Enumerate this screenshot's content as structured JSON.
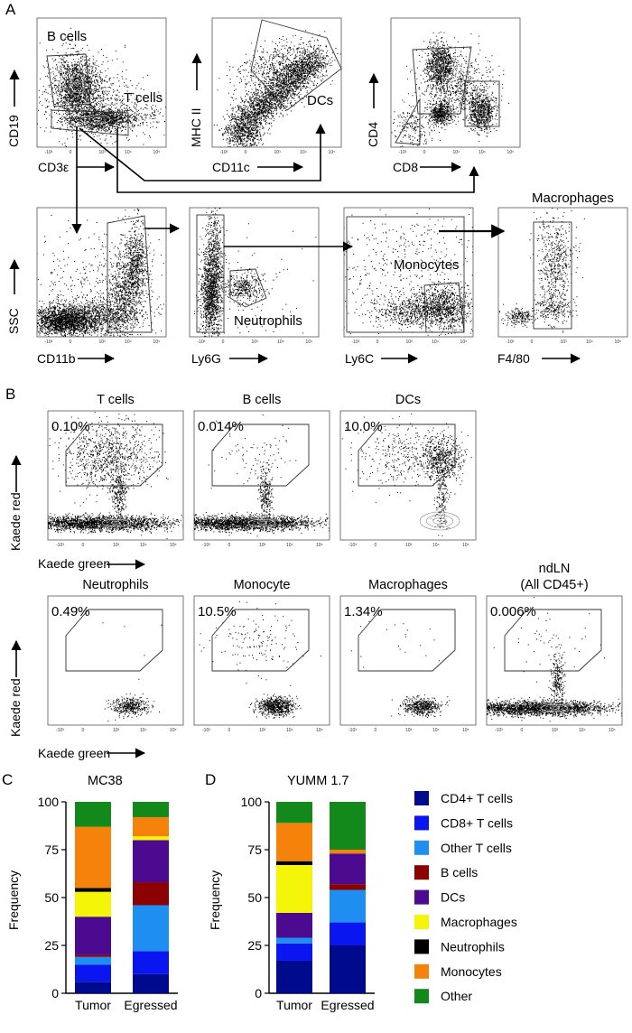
{
  "panel_a": {
    "letter": "A",
    "plots": [
      {
        "id": "a1",
        "x_label": "CD3ε",
        "y_label": "CD19",
        "gates": [
          "B cells",
          "T cells"
        ]
      },
      {
        "id": "a2",
        "x_label": "CD11c",
        "y_label": "MHC II",
        "gates": [
          "DCs"
        ]
      },
      {
        "id": "a3",
        "x_label": "CD8",
        "y_label": "CD4",
        "gates": []
      },
      {
        "id": "a4",
        "x_label": "CD11b",
        "y_label": "SSC",
        "gates": []
      },
      {
        "id": "a5",
        "x_label": "Ly6G",
        "y_label": "",
        "gates": [
          "Neutrophils"
        ]
      },
      {
        "id": "a6",
        "x_label": "Ly6C",
        "y_label": "",
        "gates": [
          "Monocytes"
        ]
      },
      {
        "id": "a7",
        "x_label": "F4/80",
        "y_label": "",
        "gates": [],
        "title": "Macrophages"
      }
    ],
    "log_ticks": [
      "-10³",
      "0",
      "10³",
      "10⁴",
      "10⁵"
    ],
    "linear_ticks": [
      "0",
      "50K",
      "100K",
      "150K",
      "200K",
      "250K"
    ]
  },
  "panel_b": {
    "letter": "B",
    "x_label": "Kaede green",
    "y_label": "Kaede red",
    "plots": [
      {
        "title": "T cells",
        "percent": "0.10%"
      },
      {
        "title": "B cells",
        "percent": "0.014%"
      },
      {
        "title": "DCs",
        "percent": "10.0%"
      },
      {
        "title": "Neutrophils",
        "percent": "0.49%"
      },
      {
        "title": "Monocyte",
        "percent": "10.5%"
      },
      {
        "title": "Macrophages",
        "percent": "1.34%"
      },
      {
        "title": "ndLN",
        "title2": "(All CD45+)",
        "percent": "0.006%"
      }
    ]
  },
  "panel_c": {
    "letter": "C",
    "title": "MC38"
  },
  "panel_d": {
    "letter": "D",
    "title": "YUMM 1.7"
  },
  "legend": [
    {
      "label": "CD4+ T cells",
      "color": "#000a8c"
    },
    {
      "label": "CD8+ T cells",
      "color": "#0a16f0"
    },
    {
      "label": "Other T cells",
      "color": "#1e8ef0"
    },
    {
      "label": "B cells",
      "color": "#8b0000"
    },
    {
      "label": "DCs",
      "color": "#4b0a8f"
    },
    {
      "label": "Macrophages",
      "color": "#f5f50a"
    },
    {
      "label": "Neutrophils",
      "color": "#000000"
    },
    {
      "label": "Monocytes",
      "color": "#f5820a"
    },
    {
      "label": "Other",
      "color": "#12891a"
    }
  ],
  "chart_data": [
    {
      "type": "bar",
      "stacked": true,
      "title": "MC38",
      "categories": [
        "Tumor",
        "Egressed"
      ],
      "ylabel": "Frequency",
      "xlabel": "",
      "ylim": [
        0,
        100
      ],
      "yticks": [
        0,
        25,
        50,
        75,
        100
      ],
      "series": [
        {
          "name": "CD4+ T cells",
          "values": [
            6,
            10
          ]
        },
        {
          "name": "CD8+ T cells",
          "values": [
            9,
            12
          ]
        },
        {
          "name": "Other T cells",
          "values": [
            4,
            24
          ]
        },
        {
          "name": "B cells",
          "values": [
            1,
            12
          ]
        },
        {
          "name": "DCs",
          "values": [
            20,
            22
          ]
        },
        {
          "name": "Macrophages",
          "values": [
            13,
            2
          ]
        },
        {
          "name": "Neutrophils",
          "values": [
            2,
            0
          ]
        },
        {
          "name": "Monocytes",
          "values": [
            32,
            10
          ]
        },
        {
          "name": "Other",
          "values": [
            13,
            8
          ]
        }
      ]
    },
    {
      "type": "bar",
      "stacked": true,
      "title": "YUMM 1.7",
      "categories": [
        "Tumor",
        "Egressed"
      ],
      "ylabel": "Frequency",
      "xlabel": "",
      "ylim": [
        0,
        100
      ],
      "yticks": [
        0,
        25,
        50,
        75,
        100
      ],
      "series": [
        {
          "name": "CD4+ T cells",
          "values": [
            17,
            25
          ]
        },
        {
          "name": "CD8+ T cells",
          "values": [
            9,
            12
          ]
        },
        {
          "name": "Other T cells",
          "values": [
            3,
            17
          ]
        },
        {
          "name": "B cells",
          "values": [
            0,
            3
          ]
        },
        {
          "name": "DCs",
          "values": [
            13,
            16
          ]
        },
        {
          "name": "Macrophages",
          "values": [
            25,
            0
          ]
        },
        {
          "name": "Neutrophils",
          "values": [
            2,
            0
          ]
        },
        {
          "name": "Monocytes",
          "values": [
            20,
            2
          ]
        },
        {
          "name": "Other",
          "values": [
            11,
            25
          ]
        }
      ]
    }
  ]
}
